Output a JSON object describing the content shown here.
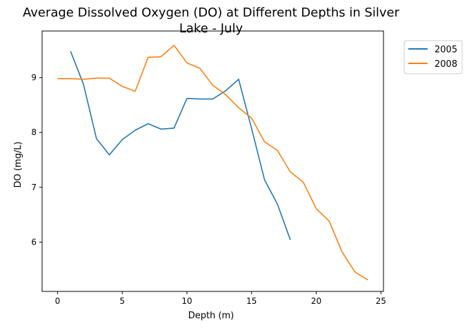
{
  "chart_data": {
    "type": "line",
    "title_line1": "Average Dissolved Oxygen (DO) at Different Depths in Silver",
    "title_line2": "Lake - July",
    "xlabel": "Depth (m)",
    "ylabel": "DO (mg/L)",
    "xlim": [
      -1.2,
      25.2
    ],
    "ylim": [
      5.1,
      9.85
    ],
    "xticks": [
      0,
      5,
      10,
      15,
      20,
      25
    ],
    "yticks": [
      6,
      7,
      8,
      9
    ],
    "grid": false,
    "legend_position": "outside-top-right",
    "series": [
      {
        "name": "2005",
        "color": "#1f77b4",
        "x": [
          1,
          2,
          3,
          4,
          5,
          6,
          7,
          8,
          9,
          10,
          11,
          12,
          13,
          14,
          15,
          16,
          17,
          18
        ],
        "y": [
          9.48,
          8.88,
          7.89,
          7.59,
          7.87,
          8.04,
          8.16,
          8.06,
          8.08,
          8.62,
          8.61,
          8.61,
          8.76,
          8.97,
          8.07,
          7.14,
          6.69,
          6.04
        ]
      },
      {
        "name": "2008",
        "color": "#ff7f0e",
        "x": [
          0,
          1,
          2,
          3,
          4,
          5,
          6,
          7,
          8,
          9,
          10,
          11,
          12,
          13,
          14,
          15,
          16,
          17,
          18,
          19,
          20,
          21,
          22,
          23,
          24
        ],
        "y": [
          8.98,
          8.98,
          8.97,
          8.99,
          8.99,
          8.84,
          8.75,
          9.37,
          9.38,
          9.59,
          9.27,
          9.17,
          8.86,
          8.69,
          8.45,
          8.26,
          7.83,
          7.67,
          7.28,
          7.09,
          6.61,
          6.38,
          5.82,
          5.45,
          5.31
        ]
      }
    ]
  }
}
